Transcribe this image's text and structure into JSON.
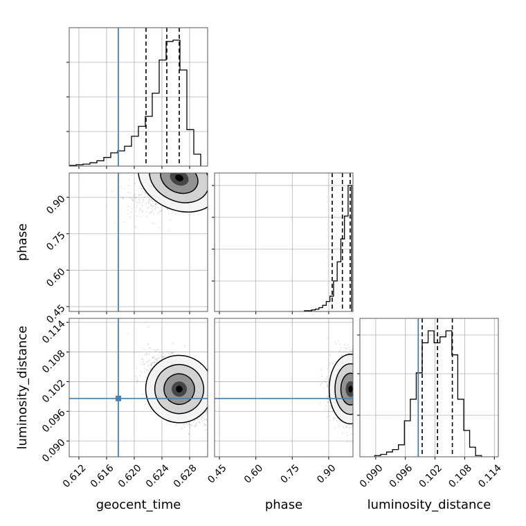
{
  "chart_data": {
    "type": "corner",
    "parameters": [
      "geocent_time",
      "phase",
      "luminosity_distance"
    ],
    "axis_labels": {
      "geocent_time": "geocent_time",
      "phase": "phase",
      "luminosity_distance": "luminosity_distance"
    },
    "ticks": {
      "geocent_time": [
        "0.612",
        "0.616",
        "0.620",
        "0.624",
        "0.628"
      ],
      "phase": [
        "0.45",
        "0.60",
        "0.75",
        "0.90"
      ],
      "luminosity_distance": [
        "0.090",
        "0.096",
        "0.102",
        "0.108",
        "0.114"
      ]
    },
    "ranges": {
      "geocent_time": [
        0.6106,
        0.6306
      ],
      "phase": [
        0.43,
        1.0
      ],
      "luminosity_distance": [
        0.0868,
        0.1148
      ]
    },
    "injection": {
      "geocent_time": 0.6177,
      "phase": null,
      "luminosity_distance": 0.0986
    },
    "injection_color": "#4682b4",
    "grid": true,
    "histograms": {
      "geocent_time": {
        "edges": [
          0.6106,
          0.6116,
          0.6126,
          0.6136,
          0.6146,
          0.6156,
          0.6166,
          0.6176,
          0.6186,
          0.6196,
          0.6206,
          0.6216,
          0.6226,
          0.6236,
          0.6246,
          0.6256,
          0.6266,
          0.6276,
          0.6286,
          0.6296
        ],
        "counts": [
          1,
          2,
          3,
          5,
          8,
          13,
          20,
          23,
          30,
          45,
          60,
          75,
          110,
          160,
          188,
          190,
          145,
          55,
          18
        ],
        "quantiles": [
          0.6217,
          0.6247,
          0.6265
        ]
      },
      "phase": {
        "edges": [
          0.8,
          0.815,
          0.83,
          0.845,
          0.86,
          0.875,
          0.89,
          0.905,
          0.92,
          0.935,
          0.95,
          0.965,
          0.98,
          0.995
        ],
        "counts": [
          1,
          1,
          2,
          3,
          5,
          8,
          13,
          20,
          40,
          65,
          95,
          125,
          165
        ],
        "quantiles": [
          0.9145,
          0.9565,
          0.9885
        ]
      },
      "luminosity_distance": {
        "edges": [
          0.0898,
          0.091,
          0.0922,
          0.0934,
          0.0946,
          0.0958,
          0.097,
          0.0982,
          0.0994,
          0.1006,
          0.1018,
          0.103,
          0.1042,
          0.1054,
          0.1066,
          0.1078,
          0.109,
          0.1102,
          0.1114
        ],
        "counts": [
          1,
          2,
          4,
          6,
          10,
          30,
          48,
          70,
          95,
          105,
          95,
          100,
          105,
          85,
          48,
          22,
          8,
          1
        ],
        "quantiles": [
          0.0994,
          0.1025,
          0.1055
        ]
      }
    },
    "density_peaks": {
      "phase_vs_geocent_time": {
        "x": 0.6265,
        "y": 0.98
      },
      "luminosity_distance_vs_geocent_time": {
        "x": 0.6265,
        "y": 0.1005
      },
      "luminosity_distance_vs_phase": {
        "x": 0.99,
        "y": 0.1005
      }
    }
  }
}
